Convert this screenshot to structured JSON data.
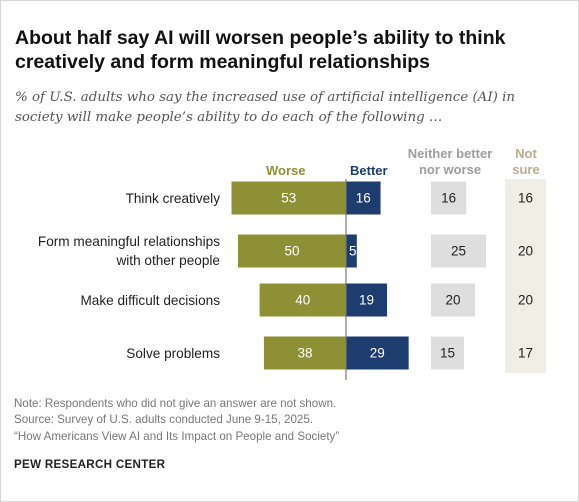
{
  "title": "About half say AI will worsen people’s ability to think creatively and form meaningful relationships",
  "subtitle": "% of U.S. adults who say the increased use of artificial intelligence (AI) in society will make people’s ability to do each of the following …",
  "columns": {
    "worse": "Worse",
    "better": "Better",
    "neither": "Neither better nor worse",
    "not_sure": "Not sure"
  },
  "notes": {
    "note": "Note: Respondents who did not give an answer are not shown.",
    "source": "Source: Survey of U.S. adults conducted June 9-15, 2025.",
    "report": "“How Americans View AI and Its Impact on People and Society”"
  },
  "brand": "PEW RESEARCH CENTER",
  "colors": {
    "worse": "#8e9035",
    "better": "#1c3d6e",
    "neither": "#dedede",
    "not_sure": "#f0ede4",
    "axis": "#777777"
  },
  "chart_data": {
    "type": "bar",
    "orientation": "horizontal",
    "layout": "diverging",
    "categories": [
      "Think creatively",
      "Form meaningful relationships with other people",
      "Make difficult decisions",
      "Solve problems"
    ],
    "category_lines": [
      [
        "Think creatively"
      ],
      [
        "Form meaningful relationships",
        "with other people"
      ],
      [
        "Make difficult decisions"
      ],
      [
        "Solve problems"
      ]
    ],
    "series": [
      {
        "name": "Worse",
        "values": [
          53,
          50,
          40,
          38
        ]
      },
      {
        "name": "Better",
        "values": [
          16,
          5,
          19,
          29
        ]
      },
      {
        "name": "Neither better nor worse",
        "values": [
          16,
          25,
          20,
          15
        ]
      },
      {
        "name": "Not sure",
        "values": [
          16,
          20,
          20,
          17
        ]
      }
    ]
  }
}
